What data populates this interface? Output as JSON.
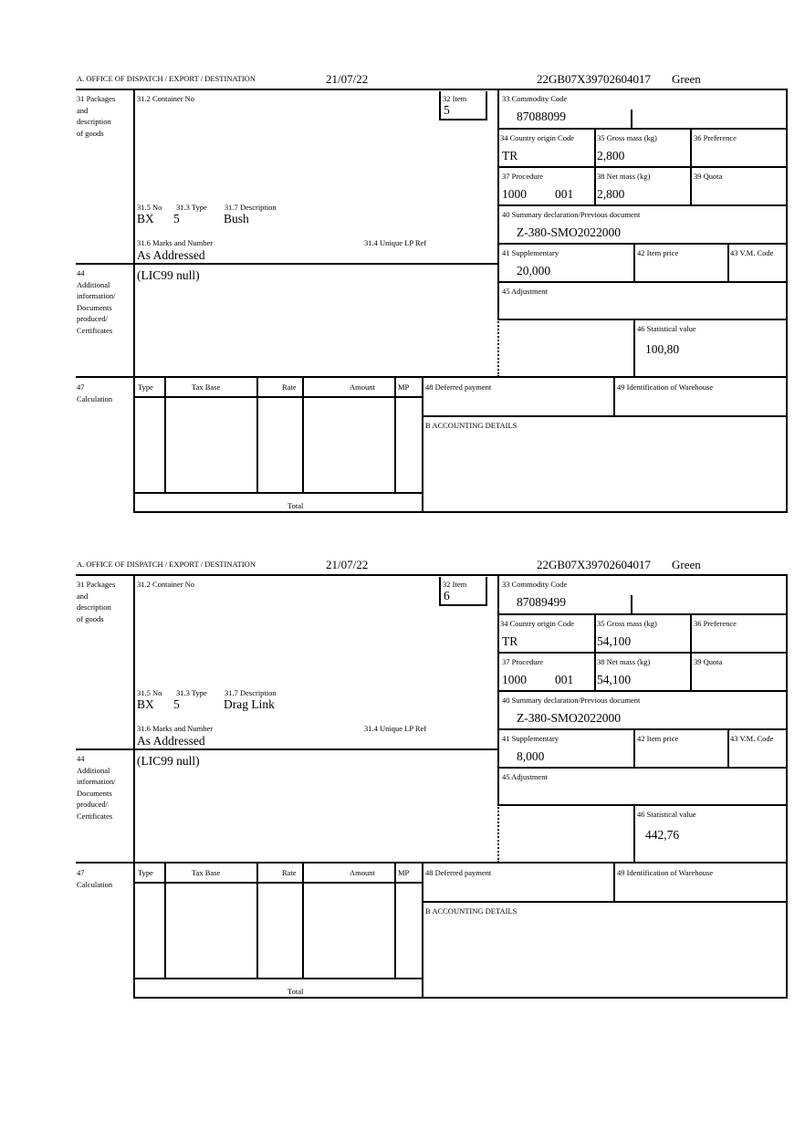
{
  "labels": {
    "office": "A. OFFICE OF DISPATCH / EXPORT / DESTINATION",
    "packages": [
      "31 Packages",
      "and",
      "description",
      "of goods"
    ],
    "container_no": "31.2 Container No",
    "item": "32 Item",
    "commodity_code": "33 Commodity Code",
    "country_origin": "34 Country origin Code",
    "gross_mass": "35 Gross mass (kg)",
    "preference": "36 Preference",
    "procedure": "37 Procedure",
    "net_mass": "38 Net mass (kg)",
    "quota": "39 Quota",
    "summary_declaration": "40 Summary declaration/Previous document",
    "supplementary": "41 Supplementary",
    "item_price": "42 Item price",
    "vm_code": "43 V.M. Code",
    "adjustment": "45 Adjustment",
    "statistical_value": "46 Statistical value",
    "no": "31.5 No",
    "type": "31.3 Type",
    "description": "31.7 Description",
    "marks": "31.6 Marks and Number",
    "unique_lp_ref": "31.4 Unique LP Ref",
    "additional_info": [
      "44",
      "Additional",
      "information/",
      "Documents",
      "produced/",
      "Certificates"
    ],
    "calculation": [
      "47",
      "Calculation"
    ],
    "calc_headers": [
      "Type",
      "Tax Base",
      "Rate",
      "Amount",
      "MP"
    ],
    "total": "Total",
    "deferred_payment": "48 Deferred payment",
    "warehouse": "49 Identification of Warehouse",
    "accounting": "B ACCOUNTING DETAILS"
  },
  "items": [
    {
      "date": "21/07/22",
      "reference": "22GB07X39702604017",
      "status": "Green",
      "item": "5",
      "commodity_code": "87088099",
      "country_origin": "TR",
      "gross_mass": "2,800",
      "procedure_a": "1000",
      "procedure_b": "001",
      "net_mass": "2,800",
      "summary_declaration": "Z-380-SMO2022000",
      "supplementary": "20,000",
      "statistical_value": "100,80",
      "no": "BX",
      "type": "5",
      "description": "Bush",
      "marks": "As Addressed",
      "additional_info": "(LIC99 null)"
    },
    {
      "date": "21/07/22",
      "reference": "22GB07X39702604017",
      "status": "Green",
      "item": "6",
      "commodity_code": "87089499",
      "country_origin": "TR",
      "gross_mass": "54,100",
      "procedure_a": "1000",
      "procedure_b": "001",
      "net_mass": "54,100",
      "summary_declaration": "Z-380-SMO2022000",
      "supplementary": "8,000",
      "statistical_value": "442,76",
      "no": "BX",
      "type": "5",
      "description": "Drag Link",
      "marks": "As Addressed",
      "additional_info": "(LIC99 null)"
    }
  ]
}
